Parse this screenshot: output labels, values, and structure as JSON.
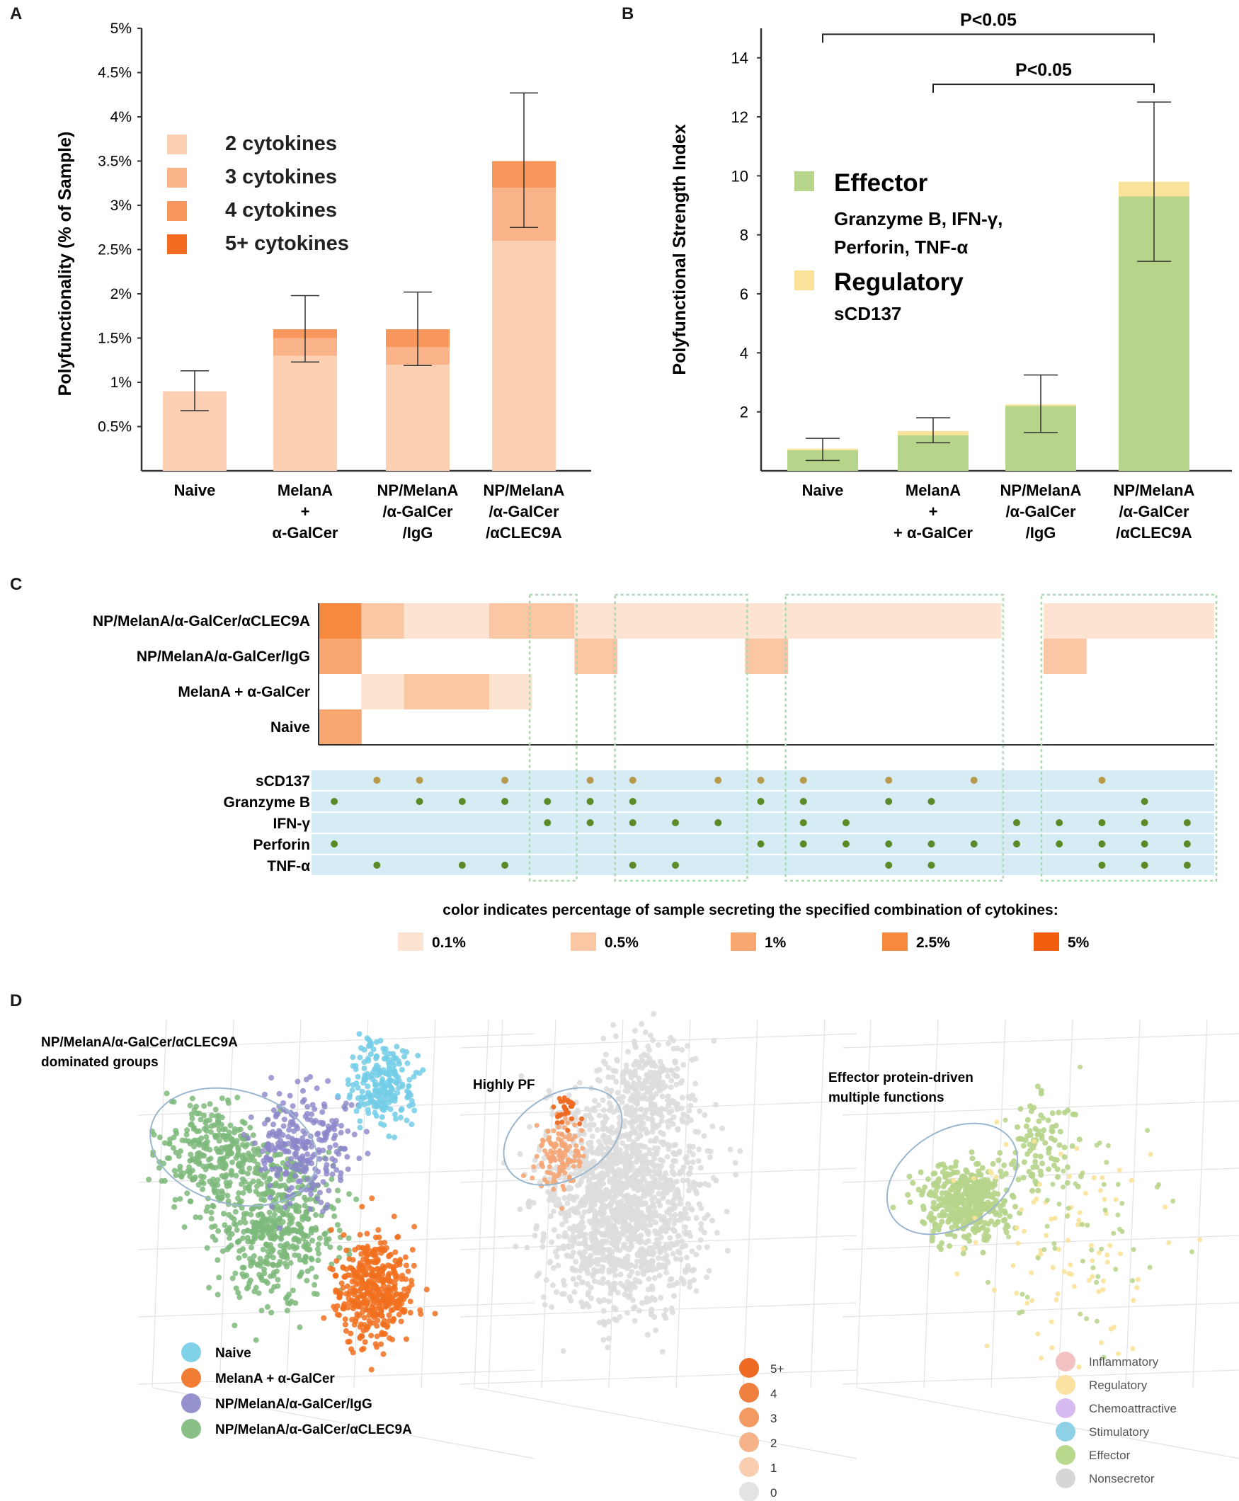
{
  "colors": {
    "c2": "#fdd0b4",
    "c3": "#fbb48a",
    "c4": "#f7975d",
    "c5": "#f26b21",
    "effector": "#b6d48a",
    "regulatory": "#f9e39a",
    "legend_01": "#fde3d2",
    "legend_05": "#fbc6a4",
    "legend_1": "#f9a770",
    "legend_25": "#f7893f",
    "legend_5": "#f25e10",
    "dot_green": "#5b8a29",
    "dot_olive": "#b79a4b",
    "band": "#d6ecf5",
    "naive_cluster": "#73cde6",
    "melana_cluster": "#f1701f",
    "igg_cluster": "#8b86c9",
    "clec_cluster": "#7db87a"
  },
  "panels": {
    "a": "A",
    "b": "B",
    "c": "C",
    "d": "D"
  },
  "chart_data": [
    {
      "id": "A",
      "type": "bar",
      "stacked": true,
      "ylabel": "Polyfunctionality (% of Sample)",
      "ylim": [
        0,
        5
      ],
      "yticks": [
        "0.5%",
        "1%",
        "1.5%",
        "2%",
        "2.5%",
        "3%",
        "3.5%",
        "4%",
        "4.5%",
        "5%"
      ],
      "categories": [
        "Naive",
        "MelanA + α-GalCer",
        "NP/MelanA /α-GalCer /IgG",
        "NP/MelanA /α-GalCer /αCLEC9A"
      ],
      "category_lines": [
        [
          "Naive"
        ],
        [
          "MelanA",
          "+",
          "α-GalCer"
        ],
        [
          "NP/MelanA",
          "/α-GalCer",
          "/IgG"
        ],
        [
          "NP/MelanA",
          "/α-GalCer",
          "/αCLEC9A"
        ]
      ],
      "series": [
        {
          "name": "2 cytokines",
          "values": [
            0.9,
            1.3,
            1.2,
            2.6
          ]
        },
        {
          "name": "3 cytokines",
          "values": [
            0,
            0.2,
            0.2,
            0.6
          ]
        },
        {
          "name": "4 cytokines",
          "values": [
            0,
            0.1,
            0.2,
            0.3
          ]
        },
        {
          "name": "5+ cytokines",
          "values": [
            0,
            0,
            0,
            0
          ]
        }
      ],
      "error_low": [
        0.68,
        1.23,
        1.19,
        2.75
      ],
      "error_high": [
        1.13,
        1.98,
        2.02,
        4.27
      ]
    },
    {
      "id": "B",
      "type": "bar",
      "stacked": true,
      "ylabel": "Polyfunctional Strength Index",
      "ylim": [
        0,
        15
      ],
      "yticks": [
        "2",
        "4",
        "6",
        "8",
        "10",
        "12",
        "14"
      ],
      "categories": [
        "Naive",
        "MelanA + + α-GalCer",
        "NP/MelanA /α-GalCer /IgG",
        "NP/MelanA /α-GalCer /αCLEC9A"
      ],
      "category_lines": [
        [
          "Naive"
        ],
        [
          "MelanA",
          "+",
          "+ α-GalCer"
        ],
        [
          "NP/MelanA",
          "/α-GalCer",
          "/IgG"
        ],
        [
          "NP/MelanA",
          "/α-GalCer",
          "/αCLEC9A"
        ]
      ],
      "series": [
        {
          "name": "Effector",
          "values": [
            0.7,
            1.2,
            2.2,
            9.3
          ]
        },
        {
          "name": "Regulatory",
          "values": [
            0.05,
            0.15,
            0.05,
            0.5
          ]
        }
      ],
      "legend": {
        "effector_title": "Effector",
        "effector_sub1": "Granzyme B, IFN-γ,",
        "effector_sub2": "Perforin, TNF-α",
        "regulatory_title": "Regulatory",
        "regulatory_sub": "sCD137"
      },
      "error_low": [
        0.35,
        0.95,
        1.3,
        7.1
      ],
      "error_high": [
        1.1,
        1.8,
        3.25,
        12.5
      ],
      "significance": [
        {
          "from": 0,
          "to": 3,
          "label": "P<0.05",
          "level": 14.8
        },
        {
          "from": 1,
          "to": 3,
          "label": "P<0.05",
          "level": 13.1
        }
      ]
    },
    {
      "id": "C",
      "type": "heatmap",
      "rows": [
        "NP/MelanA/α-GalCer/αCLEC9A",
        "NP/MelanA/α-GalCer/IgG",
        "MelanA + α-GalCer",
        "Naive"
      ],
      "cytokines": [
        "sCD137",
        "Granzyme B",
        "IFN-γ",
        "Perforin",
        "TNF-α"
      ],
      "combinations": [
        [
          0,
          1,
          0,
          1,
          0
        ],
        [
          1,
          0,
          0,
          0,
          1
        ],
        [
          1,
          1,
          0,
          0,
          0
        ],
        [
          0,
          1,
          0,
          0,
          1
        ],
        [
          1,
          1,
          0,
          0,
          1
        ],
        [
          0,
          1,
          1,
          0,
          0
        ],
        [
          1,
          1,
          1,
          0,
          0
        ],
        [
          1,
          1,
          1,
          0,
          1
        ],
        [
          0,
          0,
          1,
          0,
          1
        ],
        [
          1,
          0,
          1,
          0,
          0
        ],
        [
          1,
          1,
          0,
          1,
          0
        ],
        [
          1,
          1,
          1,
          1,
          0
        ],
        [
          0,
          0,
          1,
          1,
          0
        ],
        [
          1,
          1,
          0,
          1,
          1
        ],
        [
          0,
          1,
          0,
          1,
          1
        ],
        [
          1,
          0,
          0,
          1,
          0
        ],
        [
          0,
          0,
          1,
          1,
          0
        ],
        [
          0,
          0,
          1,
          1,
          0
        ],
        [
          1,
          0,
          1,
          1,
          1
        ],
        [
          0,
          1,
          1,
          1,
          1
        ],
        [
          0,
          0,
          1,
          1,
          1
        ]
      ],
      "values": [
        [
          2.5,
          0.5,
          0.1,
          0.1,
          0.5,
          0.5,
          0.1,
          0.1,
          0.1,
          0.1,
          0.1,
          0.1,
          0.1,
          0.1,
          0.1,
          0.1,
          0,
          0.1,
          0.1,
          0.1,
          0.1
        ],
        [
          1,
          0,
          0,
          0,
          0,
          0,
          0.5,
          0,
          0,
          0,
          0.5,
          0,
          0,
          0,
          0,
          0,
          0,
          0.5,
          0,
          0,
          0
        ],
        [
          0,
          0.1,
          0.5,
          0.5,
          0.1,
          0,
          0,
          0,
          0,
          0,
          0,
          0,
          0,
          0,
          0,
          0,
          0,
          0,
          0,
          0,
          0
        ],
        [
          1,
          0,
          0,
          0,
          0,
          0,
          0,
          0,
          0,
          0,
          0,
          0,
          0,
          0,
          0,
          0,
          0,
          0,
          0,
          0,
          0
        ]
      ],
      "dashed_groups": [
        [
          5,
          5
        ],
        [
          7,
          9
        ],
        [
          11,
          15
        ],
        [
          17,
          20
        ]
      ],
      "legend_title": "color indicates percentage of sample secreting the specified combination of cytokines:",
      "legend": [
        "0.1%",
        "0.5%",
        "1%",
        "2.5%",
        "5%"
      ]
    },
    {
      "id": "D",
      "type": "scatter",
      "plots": [
        {
          "annotation": [
            "NP/MelanA/α-GalCer/αCLEC9A",
            "dominated groups"
          ],
          "legend": [
            "Naive",
            "MelanA + α-GalCer",
            "NP/MelanA/α-GalCer/IgG",
            "NP/MelanA/α-GalCer/αCLEC9A"
          ]
        },
        {
          "annotation": [
            "Highly PF"
          ],
          "legend": [
            "5+",
            "4",
            "3",
            "2",
            "1",
            "0"
          ]
        },
        {
          "annotation": [
            "Effector protein-driven",
            "multiple functions"
          ],
          "legend": [
            "Inflammatory",
            "Regulatory",
            "Chemoattractive",
            "Stimulatory",
            "Effector",
            "Nonsecretor"
          ]
        }
      ]
    }
  ]
}
